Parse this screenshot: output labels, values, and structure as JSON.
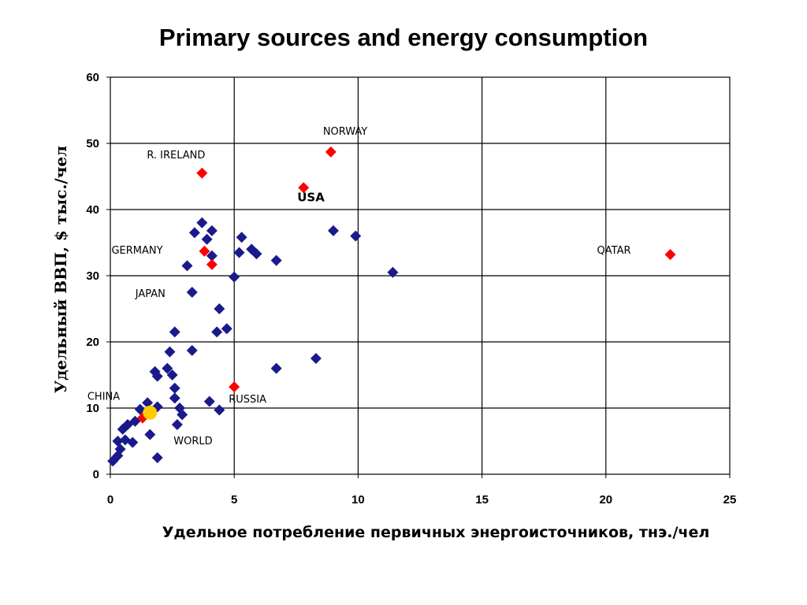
{
  "chart_data": {
    "type": "scatter",
    "title": "Primary sources and energy consumption",
    "xlabel": "Удельное потребление первичных энергоисточников,  тнэ./чел",
    "ylabel": "Удельный ВВП, $ тыс./чел",
    "xlim": [
      0,
      25
    ],
    "ylim": [
      0,
      60
    ],
    "x_ticks": [
      "0",
      "5",
      "10",
      "15",
      "20",
      "25"
    ],
    "y_ticks": [
      "0",
      "10",
      "20",
      "30",
      "40",
      "50",
      "60"
    ],
    "grid": true,
    "colors": {
      "countries": "#1a1a8c",
      "highlighted": "#ff0000",
      "world": "#ffcc00"
    },
    "series": [
      {
        "marker": "diamond",
        "points": [
          [
            0.1,
            2.0
          ],
          [
            0.3,
            2.8
          ],
          [
            0.4,
            3.8
          ],
          [
            0.3,
            5.0
          ],
          [
            0.5,
            6.8
          ],
          [
            0.6,
            5.2
          ],
          [
            0.7,
            7.5
          ],
          [
            0.9,
            4.8
          ],
          [
            1.0,
            8.0
          ],
          [
            1.2,
            9.8
          ],
          [
            1.5,
            10.8
          ],
          [
            1.6,
            6.0
          ],
          [
            1.8,
            15.5
          ],
          [
            1.9,
            14.8
          ],
          [
            1.9,
            2.5
          ],
          [
            1.9,
            10.2
          ],
          [
            2.3,
            16.0
          ],
          [
            2.4,
            18.5
          ],
          [
            2.5,
            15.0
          ],
          [
            2.6,
            13.0
          ],
          [
            2.6,
            11.5
          ],
          [
            2.6,
            21.5
          ],
          [
            2.7,
            7.5
          ],
          [
            2.8,
            10.0
          ],
          [
            2.9,
            9.0
          ],
          [
            3.1,
            31.5
          ],
          [
            3.3,
            27.5
          ],
          [
            3.3,
            18.7
          ],
          [
            3.4,
            36.5
          ],
          [
            3.7,
            38.0
          ],
          [
            3.9,
            35.5
          ],
          [
            4.0,
            11.0
          ],
          [
            4.1,
            36.8
          ],
          [
            4.1,
            33.0
          ],
          [
            4.3,
            21.5
          ],
          [
            4.4,
            25.0
          ],
          [
            4.4,
            9.7
          ],
          [
            4.7,
            22.0
          ],
          [
            5.0,
            29.8
          ],
          [
            5.2,
            33.5
          ],
          [
            5.3,
            35.8
          ],
          [
            5.7,
            34.0
          ],
          [
            5.9,
            33.3
          ],
          [
            6.7,
            32.3
          ],
          [
            6.7,
            16.0
          ],
          [
            8.3,
            17.5
          ],
          [
            9.0,
            36.8
          ],
          [
            9.9,
            36.0
          ],
          [
            11.4,
            30.5
          ]
        ]
      },
      {
        "marker": "diamond",
        "points": [
          [
            3.7,
            45.5
          ],
          [
            7.8,
            43.3
          ],
          [
            8.9,
            48.7
          ],
          [
            3.8,
            33.7
          ],
          [
            4.1,
            31.7
          ],
          [
            5.0,
            13.2
          ],
          [
            22.6,
            33.2
          ],
          [
            1.3,
            8.5
          ]
        ]
      },
      {
        "marker": "circle",
        "points": [
          [
            1.6,
            9.3
          ]
        ]
      }
    ],
    "annotations": [
      {
        "text": "NORWAY",
        "x": 8.9,
        "y": 48.7
      },
      {
        "text": "R. IRELAND",
        "x": 3.7,
        "y": 45.5
      },
      {
        "text": "USA",
        "x": 7.8,
        "y": 43.3
      },
      {
        "text": "GERMANY",
        "x": 3.8,
        "y": 33.7
      },
      {
        "text": "JAPAN",
        "x": 3.3,
        "y": 27.5
      },
      {
        "text": "QATAR",
        "x": 22.6,
        "y": 33.2
      },
      {
        "text": "CHINA",
        "x": 1.3,
        "y": 8.5
      },
      {
        "text": "RUSSIA",
        "x": 5.0,
        "y": 13.2
      },
      {
        "text": "WORLD",
        "x": 1.6,
        "y": 9.3
      }
    ]
  }
}
